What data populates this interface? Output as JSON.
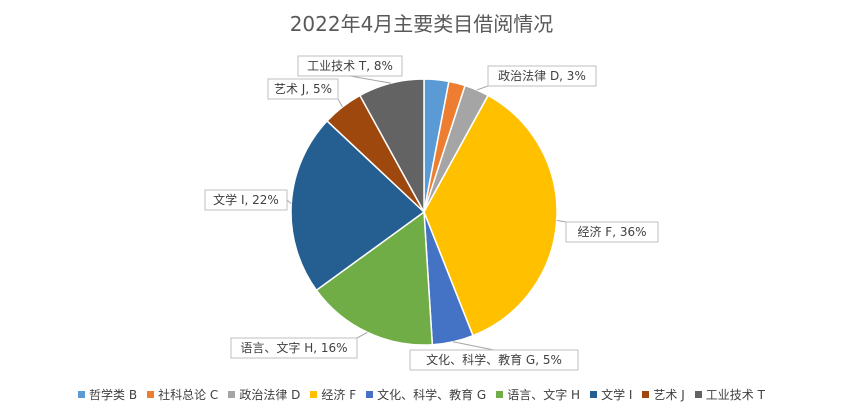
{
  "chart_data": {
    "type": "pie",
    "title": "2022年4月主要类目借阅情况",
    "categories": [
      "哲学类 B",
      "社科总论 C",
      "政治法律 D",
      "经济 F",
      "文化、科学、教育 G",
      "语言、文字 H",
      "文学 I",
      "艺术 J",
      "工业技术 T"
    ],
    "values": [
      3,
      2,
      3,
      36,
      5,
      16,
      22,
      5,
      8
    ],
    "colors": [
      "#5B9BD5",
      "#ED7D31",
      "#A5A5A5",
      "#FFC000",
      "#4472C4",
      "#70AD47",
      "#255E91",
      "#9E480E",
      "#636363"
    ],
    "data_labels": [
      "",
      "",
      "政治法律 D, 3%",
      "经济 F, 36%",
      "文化、科学、教育 G, 5%",
      "语言、文字 H, 16%",
      "文学 I, 22%",
      "艺术 J, 5%",
      "工业技术 T, 8%"
    ],
    "legend_position": "bottom",
    "start_angle": "top, clockwise"
  }
}
